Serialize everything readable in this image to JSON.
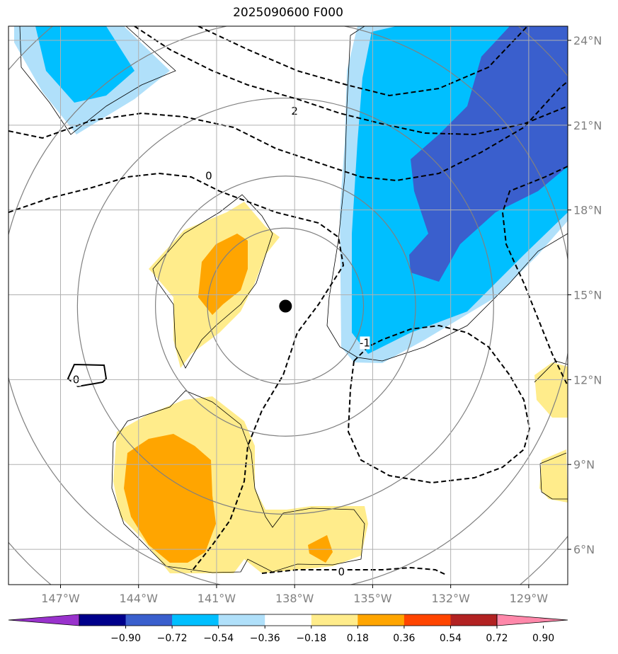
{
  "title": "2025090600 F000",
  "map": {
    "lon_range": [
      -149,
      -127.5
    ],
    "lat_range": [
      4.75,
      24.5
    ],
    "lon_ticks": [
      {
        "value": -147,
        "label": "147°W"
      },
      {
        "value": -144,
        "label": "144°W"
      },
      {
        "value": -141,
        "label": "141°W"
      },
      {
        "value": -138,
        "label": "138°W"
      },
      {
        "value": -135,
        "label": "135°W"
      },
      {
        "value": -132,
        "label": "132°W"
      },
      {
        "value": -129,
        "label": "129°W"
      }
    ],
    "lat_ticks": [
      {
        "value": 24,
        "label": "24°N"
      },
      {
        "value": 21,
        "label": "21°N"
      },
      {
        "value": 18,
        "label": "18°N"
      },
      {
        "value": 15,
        "label": "15°N"
      },
      {
        "value": 12,
        "label": "12°N"
      },
      {
        "value": 9,
        "label": "9°N"
      },
      {
        "value": 6,
        "label": "6°N"
      }
    ],
    "gridlines": true,
    "storm_center": {
      "lon": -138.35,
      "lat": 14.6
    },
    "range_rings_deg": [
      3,
      5,
      8,
      11,
      14
    ]
  },
  "contour_labels": [
    {
      "text": "2",
      "lon": -138.0,
      "lat": 21.5
    },
    {
      "text": "0",
      "lon": -141.3,
      "lat": 19.2
    },
    {
      "text": "0",
      "lon": -146.4,
      "lat": 12.0
    },
    {
      "text": "-1",
      "lon": -135.3,
      "lat": 13.3
    },
    {
      "text": "0",
      "lon": -136.2,
      "lat": 5.2
    }
  ],
  "colorbar": {
    "colors": [
      "#9932cc",
      "#00008b",
      "#3a5fcd",
      "#00bfff",
      "#b0e0fa",
      "#ffffff",
      "#ffec8b",
      "#ffa500",
      "#ff4500",
      "#b22222",
      "#ff88aa"
    ],
    "tick_labels": [
      "−0.90",
      "−0.72",
      "−0.54",
      "−0.36",
      "−0.18",
      "0.18",
      "0.36",
      "0.54",
      "0.72",
      "0.90"
    ]
  }
}
